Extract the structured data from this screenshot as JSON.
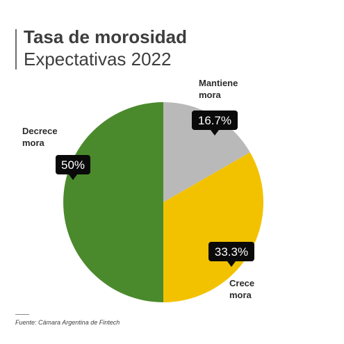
{
  "header": {
    "title": "Tasa de morosidad",
    "subtitle": "Expectativas 2022"
  },
  "source": "Fuente: Cámara Argentina de Fintech",
  "chart_data": {
    "type": "pie",
    "title": "Tasa de morosidad",
    "subtitle": "Expectativas 2022",
    "slices": [
      {
        "label_lines": [
          "Mantiene",
          "mora"
        ],
        "value": 16.7,
        "display": "16.7%",
        "color": "#b9b9b9"
      },
      {
        "label_lines": [
          "Crece",
          "mora"
        ],
        "value": 33.3,
        "display": "33.3%",
        "color": "#f2c200"
      },
      {
        "label_lines": [
          "Decrece",
          "mora"
        ],
        "value": 50,
        "display": "50%",
        "color": "#4a8a2c"
      }
    ],
    "start_angle_deg": 0,
    "direction": "clockwise",
    "legend": "none",
    "data_labels": true
  }
}
